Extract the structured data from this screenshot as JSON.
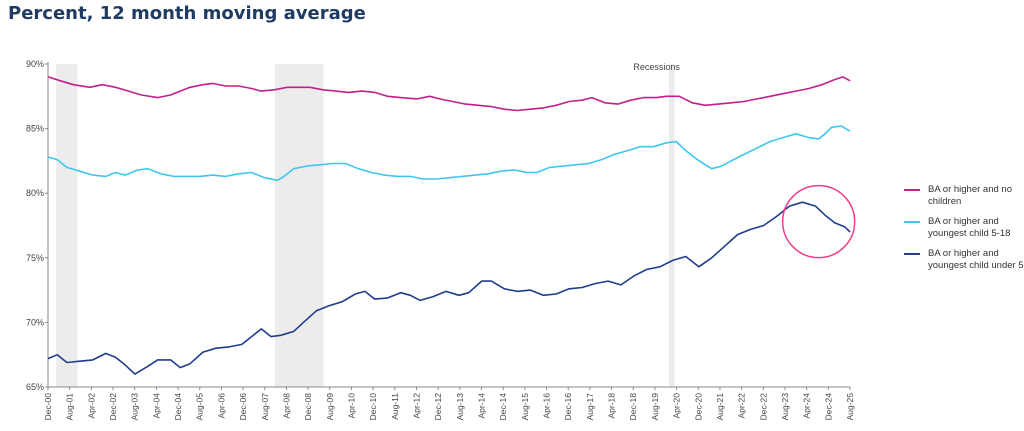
{
  "page": {
    "title": "Percent, 12 month moving average"
  },
  "colors": {
    "no_children": "#c2208c",
    "child_5_18": "#3fc7ef",
    "child_under_5": "#1f3d8c",
    "recession": "#ececec",
    "highlight": "#ee3f8a"
  },
  "chart_data": {
    "type": "line",
    "title": "Percent, 12 month moving average",
    "xlabel": "",
    "ylabel": "",
    "ylim": [
      65,
      90
    ],
    "yticks": [
      65,
      70,
      75,
      80,
      85,
      90
    ],
    "ytick_labels": [
      "65%",
      "70%",
      "75%",
      "80%",
      "85%",
      "90%"
    ],
    "xlim": [
      2000.917,
      2025.667
    ],
    "x_tick_labels": [
      "Dec-00",
      "Aug-01",
      "Apr-02",
      "Dec-02",
      "Aug-03",
      "Apr-04",
      "Dec-04",
      "Aug-05",
      "Apr-06",
      "Dec-06",
      "Aug-07",
      "Apr-08",
      "Dec-08",
      "Aug-09",
      "Apr-10",
      "Dec-10",
      "Aug-11",
      "Apr-12",
      "Dec-12",
      "Aug-13",
      "Apr-14",
      "Dec-14",
      "Aug-15",
      "Apr-16",
      "Dec-16",
      "Aug-17",
      "Apr-18",
      "Dec-18",
      "Aug-19",
      "Apr-20",
      "Dec-20",
      "Aug-21",
      "Apr-22",
      "Dec-22",
      "Aug-23",
      "Apr-24",
      "Dec-24",
      "Aug-25"
    ],
    "recessions": [
      [
        2001.17,
        2001.83
      ],
      [
        2007.92,
        2009.42
      ],
      [
        2020.08,
        2020.25
      ]
    ],
    "recession_label": "Recessions",
    "series": [
      {
        "name": "BA or  higher and no children",
        "points": [
          [
            2000.92,
            89.0
          ],
          [
            2001.3,
            88.7
          ],
          [
            2001.7,
            88.4
          ],
          [
            2002.2,
            88.2
          ],
          [
            2002.6,
            88.4
          ],
          [
            2003.0,
            88.2
          ],
          [
            2003.4,
            87.9
          ],
          [
            2003.8,
            87.6
          ],
          [
            2004.3,
            87.4
          ],
          [
            2004.7,
            87.6
          ],
          [
            2005.0,
            87.9
          ],
          [
            2005.3,
            88.2
          ],
          [
            2005.7,
            88.4
          ],
          [
            2006.0,
            88.5
          ],
          [
            2006.4,
            88.3
          ],
          [
            2006.8,
            88.3
          ],
          [
            2007.2,
            88.1
          ],
          [
            2007.5,
            87.9
          ],
          [
            2007.9,
            88.0
          ],
          [
            2008.3,
            88.2
          ],
          [
            2008.7,
            88.2
          ],
          [
            2009.0,
            88.2
          ],
          [
            2009.4,
            88.0
          ],
          [
            2009.8,
            87.9
          ],
          [
            2010.2,
            87.8
          ],
          [
            2010.6,
            87.9
          ],
          [
            2011.0,
            87.8
          ],
          [
            2011.4,
            87.5
          ],
          [
            2011.8,
            87.4
          ],
          [
            2012.3,
            87.3
          ],
          [
            2012.7,
            87.5
          ],
          [
            2013.0,
            87.3
          ],
          [
            2013.4,
            87.1
          ],
          [
            2013.8,
            86.9
          ],
          [
            2014.2,
            86.8
          ],
          [
            2014.6,
            86.7
          ],
          [
            2015.0,
            86.5
          ],
          [
            2015.4,
            86.4
          ],
          [
            2015.8,
            86.5
          ],
          [
            2016.2,
            86.6
          ],
          [
            2016.6,
            86.8
          ],
          [
            2017.0,
            87.1
          ],
          [
            2017.4,
            87.2
          ],
          [
            2017.7,
            87.4
          ],
          [
            2018.1,
            87.0
          ],
          [
            2018.5,
            86.9
          ],
          [
            2018.9,
            87.2
          ],
          [
            2019.3,
            87.4
          ],
          [
            2019.7,
            87.4
          ],
          [
            2020.0,
            87.5
          ],
          [
            2020.4,
            87.5
          ],
          [
            2020.8,
            87.0
          ],
          [
            2021.2,
            86.8
          ],
          [
            2021.6,
            86.9
          ],
          [
            2022.0,
            87.0
          ],
          [
            2022.4,
            87.1
          ],
          [
            2022.8,
            87.3
          ],
          [
            2023.2,
            87.5
          ],
          [
            2023.6,
            87.7
          ],
          [
            2024.0,
            87.9
          ],
          [
            2024.4,
            88.1
          ],
          [
            2024.8,
            88.4
          ],
          [
            2025.2,
            88.8
          ],
          [
            2025.45,
            89.0
          ],
          [
            2025.67,
            88.7
          ]
        ]
      },
      {
        "name": "BA or higher and youngest child 5-18",
        "points": [
          [
            2000.92,
            82.8
          ],
          [
            2001.2,
            82.6
          ],
          [
            2001.5,
            82.0
          ],
          [
            2001.9,
            81.7
          ],
          [
            2002.3,
            81.4
          ],
          [
            2002.7,
            81.3
          ],
          [
            2003.0,
            81.6
          ],
          [
            2003.3,
            81.4
          ],
          [
            2003.7,
            81.8
          ],
          [
            2004.0,
            81.9
          ],
          [
            2004.4,
            81.5
          ],
          [
            2004.8,
            81.3
          ],
          [
            2005.2,
            81.3
          ],
          [
            2005.6,
            81.3
          ],
          [
            2006.0,
            81.4
          ],
          [
            2006.4,
            81.3
          ],
          [
            2006.8,
            81.5
          ],
          [
            2007.2,
            81.6
          ],
          [
            2007.6,
            81.2
          ],
          [
            2008.0,
            81.0
          ],
          [
            2008.2,
            81.3
          ],
          [
            2008.5,
            81.9
          ],
          [
            2008.9,
            82.1
          ],
          [
            2009.3,
            82.2
          ],
          [
            2009.7,
            82.3
          ],
          [
            2010.1,
            82.3
          ],
          [
            2010.5,
            81.9
          ],
          [
            2010.9,
            81.6
          ],
          [
            2011.3,
            81.4
          ],
          [
            2011.7,
            81.3
          ],
          [
            2012.1,
            81.3
          ],
          [
            2012.5,
            81.1
          ],
          [
            2012.9,
            81.1
          ],
          [
            2013.3,
            81.2
          ],
          [
            2013.7,
            81.3
          ],
          [
            2014.1,
            81.4
          ],
          [
            2014.5,
            81.5
          ],
          [
            2014.9,
            81.7
          ],
          [
            2015.3,
            81.8
          ],
          [
            2015.7,
            81.6
          ],
          [
            2016.0,
            81.6
          ],
          [
            2016.4,
            82.0
          ],
          [
            2016.8,
            82.1
          ],
          [
            2017.2,
            82.2
          ],
          [
            2017.6,
            82.3
          ],
          [
            2018.0,
            82.6
          ],
          [
            2018.4,
            83.0
          ],
          [
            2018.8,
            83.3
          ],
          [
            2019.2,
            83.6
          ],
          [
            2019.6,
            83.6
          ],
          [
            2020.0,
            83.9
          ],
          [
            2020.3,
            84.0
          ],
          [
            2020.6,
            83.3
          ],
          [
            2020.9,
            82.7
          ],
          [
            2021.2,
            82.2
          ],
          [
            2021.4,
            81.9
          ],
          [
            2021.7,
            82.1
          ],
          [
            2022.0,
            82.5
          ],
          [
            2022.4,
            83.0
          ],
          [
            2022.8,
            83.5
          ],
          [
            2023.2,
            84.0
          ],
          [
            2023.6,
            84.3
          ],
          [
            2024.0,
            84.6
          ],
          [
            2024.4,
            84.3
          ],
          [
            2024.7,
            84.2
          ],
          [
            2024.9,
            84.6
          ],
          [
            2025.1,
            85.1
          ],
          [
            2025.4,
            85.2
          ],
          [
            2025.67,
            84.8
          ]
        ]
      },
      {
        "name": "BA or higher and youngest child under 5",
        "points": [
          [
            2000.92,
            67.2
          ],
          [
            2001.2,
            67.5
          ],
          [
            2001.5,
            66.9
          ],
          [
            2001.9,
            67.0
          ],
          [
            2002.3,
            67.1
          ],
          [
            2002.7,
            67.6
          ],
          [
            2003.0,
            67.3
          ],
          [
            2003.3,
            66.7
          ],
          [
            2003.6,
            66.0
          ],
          [
            2004.0,
            66.6
          ],
          [
            2004.3,
            67.1
          ],
          [
            2004.7,
            67.1
          ],
          [
            2005.0,
            66.5
          ],
          [
            2005.3,
            66.8
          ],
          [
            2005.7,
            67.7
          ],
          [
            2006.1,
            68.0
          ],
          [
            2006.5,
            68.1
          ],
          [
            2006.9,
            68.3
          ],
          [
            2007.2,
            68.9
          ],
          [
            2007.5,
            69.5
          ],
          [
            2007.8,
            68.9
          ],
          [
            2008.1,
            69.0
          ],
          [
            2008.5,
            69.3
          ],
          [
            2008.8,
            70.0
          ],
          [
            2009.2,
            70.9
          ],
          [
            2009.6,
            71.3
          ],
          [
            2010.0,
            71.6
          ],
          [
            2010.4,
            72.2
          ],
          [
            2010.7,
            72.4
          ],
          [
            2011.0,
            71.8
          ],
          [
            2011.4,
            71.9
          ],
          [
            2011.8,
            72.3
          ],
          [
            2012.1,
            72.1
          ],
          [
            2012.4,
            71.7
          ],
          [
            2012.8,
            72.0
          ],
          [
            2013.2,
            72.4
          ],
          [
            2013.6,
            72.1
          ],
          [
            2013.9,
            72.3
          ],
          [
            2014.3,
            73.2
          ],
          [
            2014.6,
            73.2
          ],
          [
            2015.0,
            72.6
          ],
          [
            2015.4,
            72.4
          ],
          [
            2015.8,
            72.5
          ],
          [
            2016.2,
            72.1
          ],
          [
            2016.6,
            72.2
          ],
          [
            2017.0,
            72.6
          ],
          [
            2017.4,
            72.7
          ],
          [
            2017.8,
            73.0
          ],
          [
            2018.2,
            73.2
          ],
          [
            2018.6,
            72.9
          ],
          [
            2019.0,
            73.6
          ],
          [
            2019.4,
            74.1
          ],
          [
            2019.8,
            74.3
          ],
          [
            2020.2,
            74.8
          ],
          [
            2020.6,
            75.1
          ],
          [
            2021.0,
            74.3
          ],
          [
            2021.4,
            75.0
          ],
          [
            2021.8,
            75.9
          ],
          [
            2022.2,
            76.8
          ],
          [
            2022.6,
            77.2
          ],
          [
            2023.0,
            77.5
          ],
          [
            2023.4,
            78.2
          ],
          [
            2023.8,
            79.0
          ],
          [
            2024.2,
            79.3
          ],
          [
            2024.6,
            79.0
          ],
          [
            2024.9,
            78.3
          ],
          [
            2025.2,
            77.7
          ],
          [
            2025.5,
            77.4
          ],
          [
            2025.67,
            77.0
          ]
        ]
      }
    ],
    "legend_position": "right"
  }
}
